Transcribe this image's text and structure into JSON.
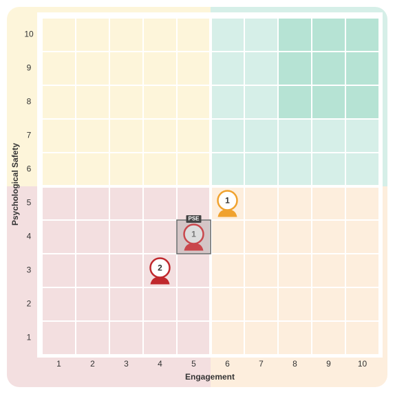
{
  "chart_data": {
    "type": "scatter",
    "x_label": "Engagement",
    "y_label": "Psychological Safety",
    "xlim": [
      0.5,
      10.5
    ],
    "ylim": [
      0.5,
      10.5
    ],
    "xticks": [
      1,
      2,
      3,
      4,
      5,
      6,
      7,
      8,
      9,
      10
    ],
    "yticks": [
      1,
      2,
      3,
      4,
      5,
      6,
      7,
      8,
      9,
      10
    ],
    "points": [
      {
        "x": 6,
        "y": 5,
        "count": 1,
        "color": "#f0a22e"
      },
      {
        "x": 4,
        "y": 3,
        "count": 2,
        "color": "#c0282d"
      },
      {
        "x": 5,
        "y": 4,
        "count": 1,
        "color": "#c9474c",
        "label": "PSE"
      }
    ]
  }
}
